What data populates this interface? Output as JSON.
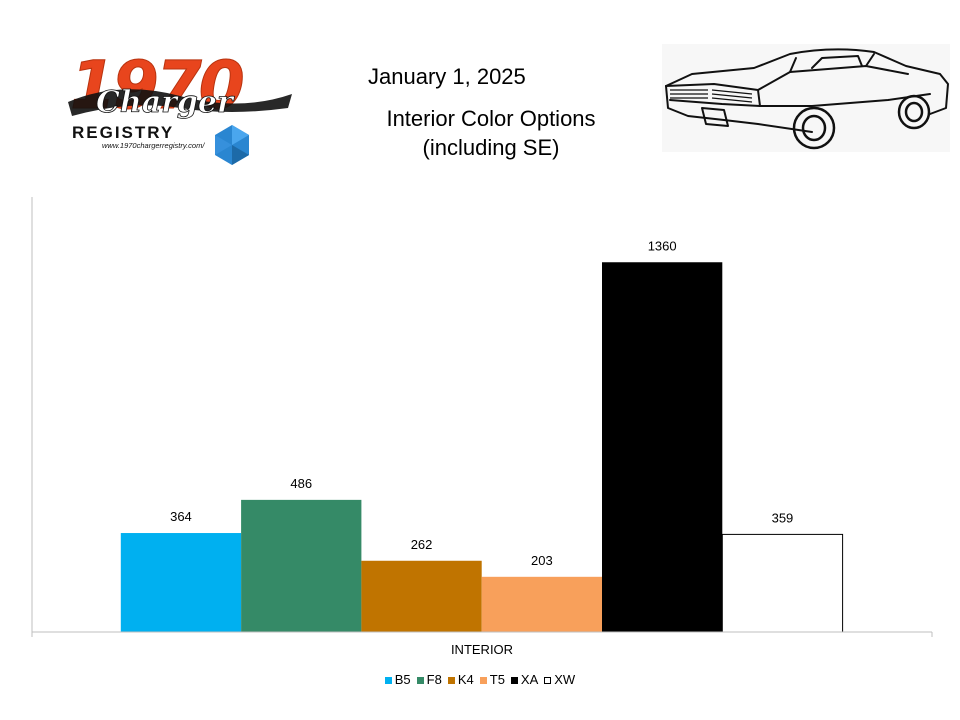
{
  "header": {
    "date": "January 1, 2025",
    "title_lines": [
      "Interior Color Options",
      "(including SE)"
    ]
  },
  "logo": {
    "number_text": "1970",
    "script_text": "Charger",
    "registry_text": "REGISTRY",
    "url_text": "www.1970chargerregistry.com/"
  },
  "chart_data": {
    "type": "bar",
    "categories": [
      "INTERIOR"
    ],
    "series": [
      {
        "name": "B5",
        "values": [
          364
        ],
        "color": "#00b0f0"
      },
      {
        "name": "F8",
        "values": [
          486
        ],
        "color": "#358a67"
      },
      {
        "name": "K4",
        "values": [
          262
        ],
        "color": "#c07400"
      },
      {
        "name": "T5",
        "values": [
          203
        ],
        "color": "#f8a05b"
      },
      {
        "name": "XA",
        "values": [
          1360
        ],
        "color": "#000000"
      },
      {
        "name": "XW",
        "values": [
          359
        ],
        "color": "#ffffff"
      }
    ],
    "data_labels": [
      "364",
      "486",
      "262",
      "203",
      "1360",
      "359"
    ],
    "xlabel": "",
    "ylabel": "",
    "ylim": [
      0,
      1600
    ],
    "grid": false,
    "legend_position": "bottom"
  }
}
